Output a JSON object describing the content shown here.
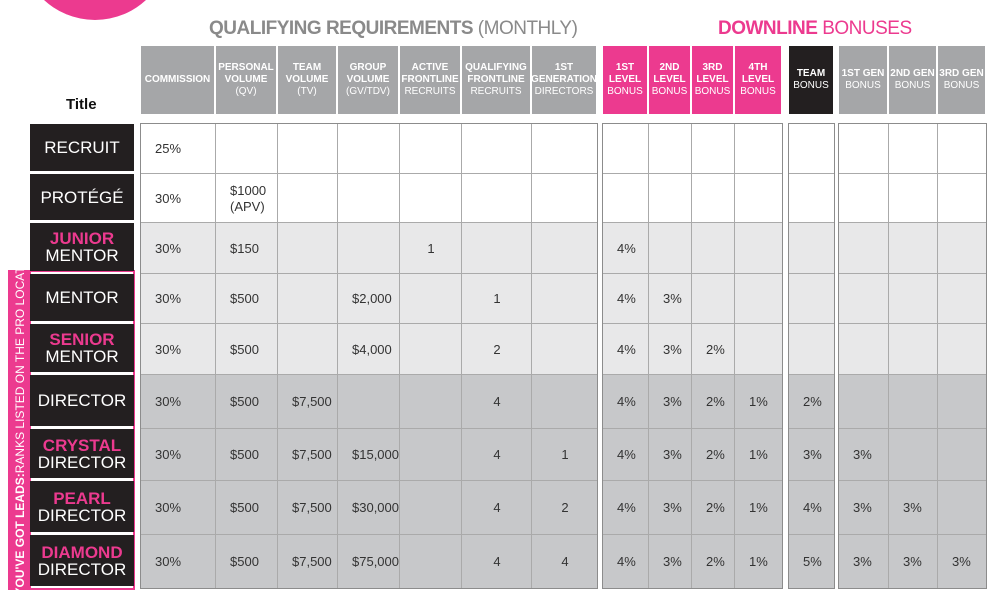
{
  "sections": {
    "qualifying": {
      "bold": "QUALIFYING REQUIREMENTS",
      "light": " (MONTHLY)"
    },
    "downline": {
      "bold": "DOWNLINE",
      "light": " BONUSES"
    }
  },
  "title_label": "Title",
  "side_label": {
    "bold": "YOU'VE GOT LEADS:",
    "light": " RANKS LISTED ON THE PRO LOCATOR"
  },
  "columns": [
    {
      "bold": "COMMISSION",
      "light": ""
    },
    {
      "bold": "PERSONAL VOLUME",
      "light": "(QV)"
    },
    {
      "bold": "TEAM VOLUME",
      "light": "(TV)"
    },
    {
      "bold": "GROUP VOLUME",
      "light": "(GV/TDV)"
    },
    {
      "bold": "ACTIVE FRONTLINE",
      "light": "RECRUITS"
    },
    {
      "bold": "QUALIFYING FRONTLINE",
      "light": "RECRUITS"
    },
    {
      "bold": "1ST GENERATION",
      "light": "DIRECTORS"
    },
    {
      "bold": "1ST LEVEL",
      "light": "BONUS"
    },
    {
      "bold": "2ND LEVEL",
      "light": "BONUS"
    },
    {
      "bold": "3RD LEVEL",
      "light": "BONUS"
    },
    {
      "bold": "4TH LEVEL",
      "light": "BONUS"
    },
    {
      "bold": "TEAM",
      "light": "BONUS"
    },
    {
      "bold": "1ST GEN",
      "light": "BONUS"
    },
    {
      "bold": "2ND GEN",
      "light": "BONUS"
    },
    {
      "bold": "3RD GEN",
      "light": "BONUS"
    }
  ],
  "header_colors": {
    "qualifying": "#a5a6a8",
    "downline": "#ec3a8f",
    "team": "#231f20",
    "gen": "#a5a6a8"
  },
  "row_colors": {
    "white": "#ffffff",
    "light": "#e8e8e9",
    "mid": "#c7c8ca"
  },
  "rows": [
    {
      "line1": "RECRUIT",
      "line2": "",
      "pink": false,
      "shade": "white",
      "values": [
        "25%",
        "",
        "",
        "",
        "",
        "",
        "",
        "",
        "",
        "",
        "",
        "",
        "",
        "",
        ""
      ]
    },
    {
      "line1": "PROTÉGÉ",
      "line2": "",
      "pink": false,
      "shade": "white",
      "values": [
        "30%",
        "$1000\n(APV)",
        "",
        "",
        "",
        "",
        "",
        "",
        "",
        "",
        "",
        "",
        "",
        "",
        ""
      ]
    },
    {
      "line1": "JUNIOR",
      "line2": "MENTOR",
      "pink": true,
      "shade": "light",
      "values": [
        "30%",
        "$150",
        "",
        "",
        "1",
        "",
        "",
        "4%",
        "",
        "",
        "",
        "",
        "",
        "",
        ""
      ]
    },
    {
      "line1": "MENTOR",
      "line2": "",
      "pink": false,
      "shade": "light",
      "values": [
        "30%",
        "$500",
        "",
        "$2,000",
        "",
        "1",
        "",
        "4%",
        "3%",
        "",
        "",
        "",
        "",
        "",
        ""
      ]
    },
    {
      "line1": "SENIOR",
      "line2": "MENTOR",
      "pink": true,
      "shade": "light",
      "values": [
        "30%",
        "$500",
        "",
        "$4,000",
        "",
        "2",
        "",
        "4%",
        "3%",
        "2%",
        "",
        "",
        "",
        "",
        ""
      ]
    },
    {
      "line1": "DIRECTOR",
      "line2": "",
      "pink": false,
      "shade": "mid",
      "values": [
        "30%",
        "$500",
        "$7,500",
        "",
        "",
        "4",
        "",
        "4%",
        "3%",
        "2%",
        "1%",
        "2%",
        "",
        "",
        ""
      ]
    },
    {
      "line1": "CRYSTAL",
      "line2": "DIRECTOR",
      "pink": true,
      "shade": "mid",
      "values": [
        "30%",
        "$500",
        "$7,500",
        "$15,000",
        "",
        "4",
        "1",
        "4%",
        "3%",
        "2%",
        "1%",
        "3%",
        "3%",
        "",
        ""
      ]
    },
    {
      "line1": "PEARL",
      "line2": "DIRECTOR",
      "pink": true,
      "shade": "mid",
      "values": [
        "30%",
        "$500",
        "$7,500",
        "$30,000",
        "",
        "4",
        "2",
        "4%",
        "3%",
        "2%",
        "1%",
        "4%",
        "3%",
        "3%",
        ""
      ]
    },
    {
      "line1": "DIAMOND",
      "line2": "DIRECTOR",
      "pink": true,
      "shade": "mid",
      "values": [
        "30%",
        "$500",
        "$7,500",
        "$75,000",
        "",
        "4",
        "4",
        "4%",
        "3%",
        "2%",
        "1%",
        "5%",
        "3%",
        "3%",
        "3%"
      ]
    }
  ]
}
